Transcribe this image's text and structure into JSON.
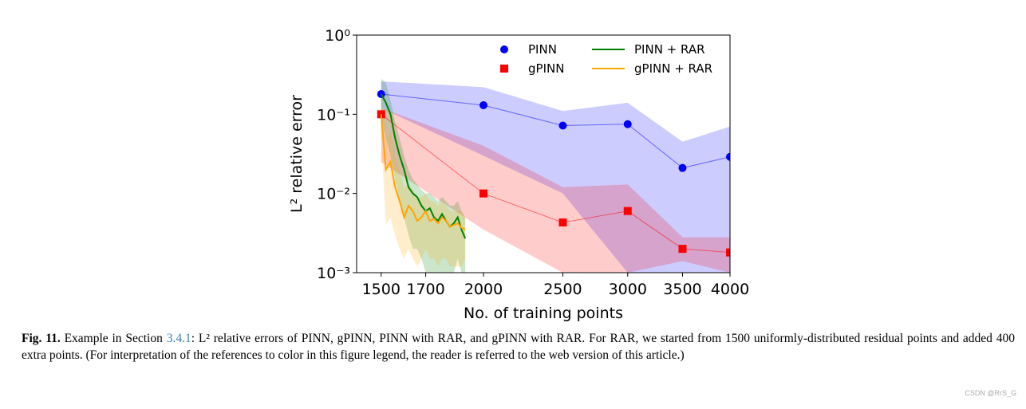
{
  "chart_data": {
    "type": "line",
    "xscale": "log",
    "yscale": "log",
    "xlabel": "No. of training points",
    "ylabel": "L² relative error",
    "xlim": [
      1400,
      4000
    ],
    "ylim": [
      0.001,
      1
    ],
    "xticks": [
      1500,
      1700,
      2000,
      2500,
      3000,
      3500,
      4000
    ],
    "yticks": [
      {
        "value": 0.001,
        "label": "10⁻³"
      },
      {
        "value": 0.01,
        "label": "10⁻²"
      },
      {
        "value": 0.1,
        "label": "10⁻¹"
      },
      {
        "value": 1,
        "label": "10⁰"
      }
    ],
    "legend": "upper right",
    "series": [
      {
        "name": "PINN",
        "color": "#0000ff",
        "marker": "circle",
        "x": [
          1500,
          2000,
          2500,
          3000,
          3500,
          4000
        ],
        "values": [
          0.18,
          0.13,
          0.072,
          0.075,
          0.021,
          0.029
        ],
        "upper": [
          0.26,
          0.22,
          0.11,
          0.14,
          0.045,
          0.07
        ],
        "lower": [
          0.12,
          0.03,
          0.01,
          0.001,
          0.001,
          0.001
        ]
      },
      {
        "name": "gPINN",
        "color": "#ff0000",
        "marker": "square",
        "x": [
          1500,
          2000,
          2500,
          3000,
          3500,
          4000
        ],
        "values": [
          0.1,
          0.01,
          0.0043,
          0.006,
          0.002,
          0.0018
        ],
        "upper": [
          0.12,
          0.04,
          0.012,
          0.013,
          0.0028,
          0.0028
        ],
        "lower": [
          0.025,
          0.0035,
          0.001,
          0.001,
          0.0014,
          0.001
        ]
      },
      {
        "name": "PINN + RAR",
        "color": "#008000",
        "marker": "none",
        "x": [
          1500,
          1520,
          1540,
          1560,
          1580,
          1600,
          1620,
          1640,
          1660,
          1680,
          1700,
          1720,
          1740,
          1760,
          1780,
          1800,
          1820,
          1840,
          1860,
          1880,
          1900
        ],
        "values": [
          0.18,
          0.14,
          0.1,
          0.05,
          0.03,
          0.02,
          0.012,
          0.01,
          0.009,
          0.007,
          0.006,
          0.0065,
          0.005,
          0.0045,
          0.0055,
          0.0045,
          0.0038,
          0.0042,
          0.005,
          0.0035,
          0.0027
        ],
        "upper": [
          0.28,
          0.25,
          0.15,
          0.08,
          0.05,
          0.03,
          0.02,
          0.015,
          0.013,
          0.011,
          0.01,
          0.01,
          0.009,
          0.008,
          0.009,
          0.008,
          0.007,
          0.007,
          0.008,
          0.006,
          0.005
        ],
        "lower": [
          0.09,
          0.05,
          0.03,
          0.015,
          0.008,
          0.005,
          0.003,
          0.002,
          0.002,
          0.0015,
          0.001,
          0.001,
          0.001,
          0.001,
          0.001,
          0.001,
          0.001,
          0.001,
          0.0015,
          0.001,
          0.001
        ]
      },
      {
        "name": "gPINN + RAR",
        "color": "#ffa500",
        "marker": "none",
        "x": [
          1500,
          1520,
          1540,
          1560,
          1580,
          1600,
          1620,
          1640,
          1660,
          1680,
          1700,
          1720,
          1740,
          1760,
          1780,
          1800,
          1820,
          1840,
          1860,
          1880,
          1900
        ],
        "values": [
          0.1,
          0.02,
          0.025,
          0.012,
          0.008,
          0.005,
          0.007,
          0.006,
          0.0045,
          0.005,
          0.006,
          0.0045,
          0.0048,
          0.0042,
          0.005,
          0.0045,
          0.0038,
          0.004,
          0.0042,
          0.0037,
          0.0035
        ],
        "upper": [
          0.2,
          0.05,
          0.06,
          0.03,
          0.02,
          0.012,
          0.013,
          0.011,
          0.009,
          0.009,
          0.01,
          0.008,
          0.008,
          0.007,
          0.008,
          0.007,
          0.006,
          0.006,
          0.006,
          0.006,
          0.005
        ],
        "lower": [
          0.05,
          0.004,
          0.005,
          0.003,
          0.002,
          0.0015,
          0.002,
          0.0015,
          0.0012,
          0.0015,
          0.002,
          0.0015,
          0.0015,
          0.0012,
          0.0015,
          0.0015,
          0.0012,
          0.0012,
          0.0012,
          0.0012,
          0.0015
        ]
      }
    ]
  },
  "caption": {
    "label": "Fig. 11.",
    "before": "Example in Section",
    "link": "3.4.1",
    "text": ": L² relative errors of PINN, gPINN, PINN with RAR, and gPINN with RAR. For RAR, we started from 1500 uniformly-distributed residual points and added 400 extra points. (For interpretation of the references to color in this figure legend, the reader is referred to the web version of this article.)"
  },
  "watermark": "CSDN @RrS_G"
}
